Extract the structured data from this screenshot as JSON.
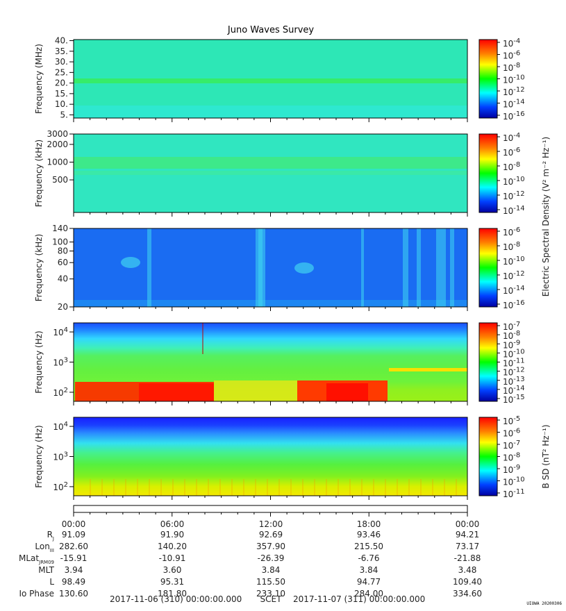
{
  "title": "Juno Waves Survey",
  "credit": "UIOWA 20200306",
  "chart_data": [
    {
      "type": "heatmap",
      "ylabel": "Frequency (MHz)",
      "yscale": "linear",
      "ylim": [
        3.5,
        40.5
      ],
      "yticks": [
        5,
        10,
        15,
        20,
        25,
        30,
        35,
        40
      ],
      "yticklabels": [
        "5.",
        "10.",
        "15.",
        "20.",
        "25.",
        "30.",
        "35.",
        "40."
      ],
      "colorbar": {
        "ticks": [
          "10^-4",
          "10^-6",
          "10^-8",
          "10^-10",
          "10^-12",
          "10^-14",
          "10^-16"
        ],
        "exp": [
          "-4",
          "-6",
          "-8",
          "-10",
          "-12",
          "-14",
          "-16"
        ],
        "label": ""
      },
      "features": "uniform cyan-green background with a green band near 21 MHz"
    },
    {
      "type": "heatmap",
      "ylabel": "Frequency (kHz)",
      "yscale": "log",
      "ylim": [
        140,
        3000
      ],
      "yticks": [
        500,
        1000,
        2000,
        3000
      ],
      "yticklabels": [
        "500",
        "1000",
        "2000",
        "3000"
      ],
      "colorbar": {
        "ticks": [
          "10^-4",
          "10^-6",
          "10^-8",
          "10^-10",
          "10^-12",
          "10^-14"
        ],
        "exp": [
          "-4",
          "-6",
          "-8",
          "-10",
          "-12",
          "-14"
        ],
        "label": "Electric Spectral Density (V² m⁻² Hz⁻¹)"
      },
      "features": "cyan-green background with a green band near 1000 kHz"
    },
    {
      "type": "heatmap",
      "ylabel": "Frequency (kHz)",
      "yscale": "log",
      "ylim": [
        20,
        140
      ],
      "yticks": [
        20,
        40,
        60,
        80,
        100,
        140
      ],
      "yticklabels": [
        "20",
        "40",
        "60",
        "80",
        "100",
        "140"
      ],
      "colorbar": {
        "ticks": [
          "10^-6",
          "10^-8",
          "10^-10",
          "10^-12",
          "10^-14",
          "10^-16"
        ],
        "exp": [
          "-6",
          "-8",
          "-10",
          "-12",
          "-14",
          "-16"
        ],
        "label": ""
      },
      "features": "blue background with cyan vertical streaks"
    },
    {
      "type": "heatmap",
      "ylabel": "Frequency (Hz)",
      "yscale": "log",
      "ylim": [
        50,
        20000
      ],
      "yticks": [
        "10^2",
        "10^3",
        "10^4"
      ],
      "yexp": [
        "2",
        "3",
        "4"
      ],
      "colorbar": {
        "ticks": [
          "10^-7",
          "10^-8",
          "10^-9",
          "10^-10",
          "10^-11",
          "10^-12",
          "10^-13",
          "10^-14",
          "10^-15"
        ],
        "exp": [
          "-7",
          "-8",
          "-9",
          "-10",
          "-11",
          "-12",
          "-13",
          "-14",
          "-15"
        ],
        "label": ""
      },
      "features": "blue top, green middle, red/orange low-frequency emission"
    },
    {
      "type": "heatmap",
      "ylabel": "Frequency (Hz)",
      "yscale": "log",
      "ylim": [
        50,
        20000
      ],
      "yticks": [
        "10^2",
        "10^3",
        "10^4"
      ],
      "yexp": [
        "2",
        "3",
        "4"
      ],
      "colorbar": {
        "ticks": [
          "10^-5",
          "10^-6",
          "10^-7",
          "10^-8",
          "10^-9",
          "10^-10",
          "10^-11"
        ],
        "exp": [
          "-5",
          "-6",
          "-7",
          "-8",
          "-9",
          "-10",
          "-11"
        ],
        "label": "B SD (nT² Hz⁻¹)"
      },
      "features": "blue top, green middle, yellow bottom"
    }
  ],
  "ephemeris": {
    "times": [
      "00:00",
      "06:00",
      "12:00",
      "18:00",
      "00:00"
    ],
    "rows": [
      {
        "label": "R",
        "sub": "J",
        "values": [
          "91.09",
          "91.90",
          "92.69",
          "93.46",
          "94.21"
        ]
      },
      {
        "label": "Lon",
        "sub": "III",
        "values": [
          "282.60",
          "140.20",
          "357.90",
          "215.50",
          "73.17"
        ]
      },
      {
        "label": "MLat",
        "sub": "JRM09",
        "values": [
          "-15.91",
          "-10.91",
          "-26.39",
          "-6.76",
          "-21.88"
        ]
      },
      {
        "label": "MLT",
        "sub": "",
        "values": [
          "3.94",
          "3.60",
          "3.84",
          "3.84",
          "3.48"
        ]
      },
      {
        "label": "L",
        "sub": "",
        "values": [
          "98.49",
          "95.31",
          "115.50",
          "94.77",
          "109.40"
        ]
      },
      {
        "label": "Io Phase",
        "sub": "",
        "values": [
          "130.60",
          "181.80",
          "233.10",
          "284.00",
          "334.60"
        ]
      }
    ],
    "date_start": "2017-11-06 (310) 00:00:00.000",
    "scet": "SCET",
    "date_end": "2017-11-07 (311) 00:00:00.000"
  }
}
